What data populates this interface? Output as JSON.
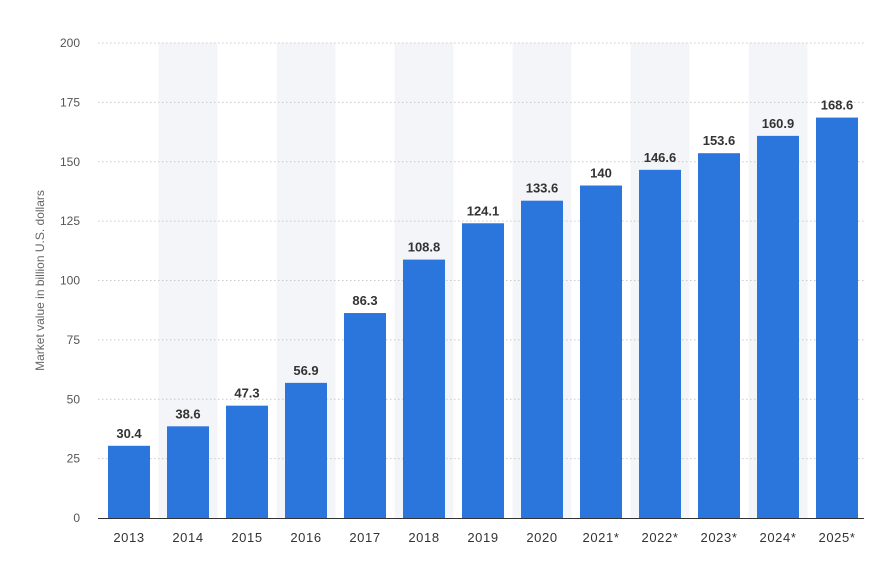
{
  "chart_data": {
    "type": "bar",
    "categories": [
      "2013",
      "2014",
      "2015",
      "2016",
      "2017",
      "2018",
      "2019",
      "2020",
      "2021*",
      "2022*",
      "2023*",
      "2024*",
      "2025*"
    ],
    "values": [
      30.4,
      38.6,
      47.3,
      56.9,
      86.3,
      108.8,
      124.1,
      133.6,
      140,
      146.6,
      153.6,
      160.9,
      168.6
    ],
    "value_labels": [
      "30.4",
      "38.6",
      "47.3",
      "56.9",
      "86.3",
      "108.8",
      "124.1",
      "133.6",
      "140",
      "146.6",
      "153.6",
      "160.9",
      "168.6"
    ],
    "ylabel": "Market value in billion U.S. dollars",
    "xlabel": "",
    "ylim": [
      0,
      200
    ],
    "yticks": [
      0,
      25,
      50,
      75,
      100,
      125,
      150,
      175,
      200
    ],
    "ytick_labels": [
      "0",
      "25",
      "50",
      "75",
      "100",
      "125",
      "150",
      "175",
      "200"
    ],
    "grid": true,
    "grid_style": "dotted",
    "alternating_column_bands": true,
    "bar_color": "#2a76dd",
    "band_color": "#f4f5f8",
    "grid_color": "#c9c9c9",
    "axis_color": "#333333"
  }
}
